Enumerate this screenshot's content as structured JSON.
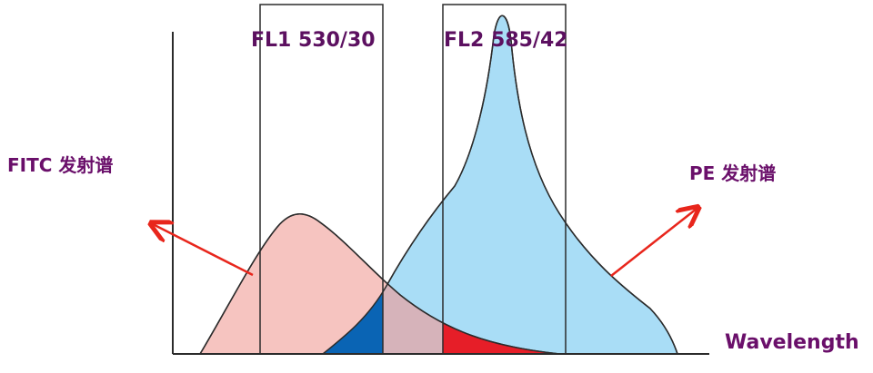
{
  "filters": {
    "fl1": "FL1 530/30",
    "fl2": "FL2 585/42"
  },
  "spectra": {
    "fitc": "FITC 发射谱",
    "pe": "PE 发射谱"
  },
  "axis": {
    "x_label": "Wavelength"
  },
  "colors": {
    "fitc_fill": "#f6c4c0",
    "pe_fill": "#a9ddf6",
    "overlap_fill": "#d6b3ba",
    "pe_in_fl1": "#0a64b4",
    "fitc_in_fl2": "#e61e28",
    "arrow": "#e8261c",
    "text": "#6a0f6a"
  }
}
